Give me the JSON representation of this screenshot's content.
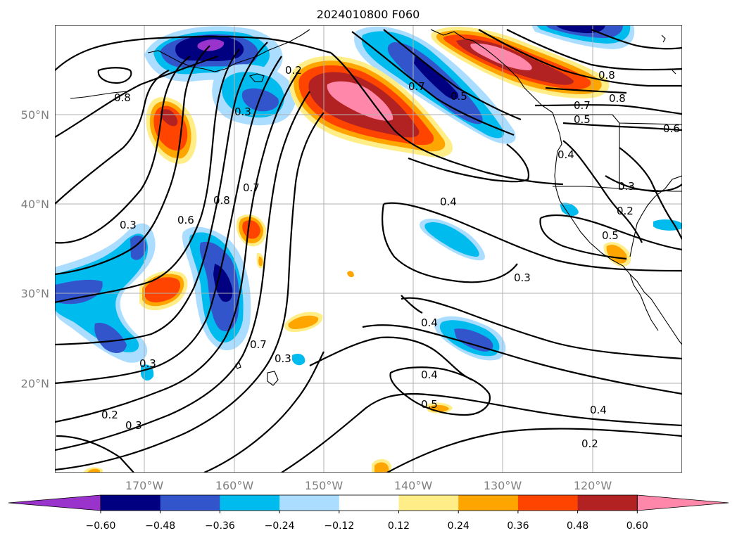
{
  "title": "2024010800 F060",
  "lat_labels": [
    "50°N",
    "40°N",
    "30°N",
    "20°N"
  ],
  "lon_labels": [
    "170°W",
    "160°W",
    "150°W",
    "140°W",
    "130°W",
    "120°W"
  ],
  "colorbar": {
    "ticks": [
      "−0.60",
      "−0.48",
      "−0.36",
      "−0.24",
      "−0.12",
      "0.12",
      "0.24",
      "0.36",
      "0.48",
      "0.60"
    ],
    "colors": [
      "#9933cc",
      "#000080",
      "#3355cc",
      "#00bbee",
      "#aaddff",
      "#ffffff",
      "#ffee88",
      "#ffa500",
      "#ff4400",
      "#b22222",
      "#ff88aa"
    ]
  },
  "contour_labels": [
    "0.8",
    "0.2",
    "0.3",
    "0.7",
    "0.5",
    "0.8",
    "0.7",
    "0.8",
    "0.5",
    "0.6",
    "0.4",
    "0.8",
    "0.7",
    "0.6",
    "0.3",
    "0.4",
    "0.3",
    "0.2",
    "0.5",
    "0.3",
    "0.4",
    "0.7",
    "0.3",
    "0.4",
    "0.3",
    "0.5",
    "0.4",
    "0.2",
    "0.2",
    "0.3"
  ]
}
